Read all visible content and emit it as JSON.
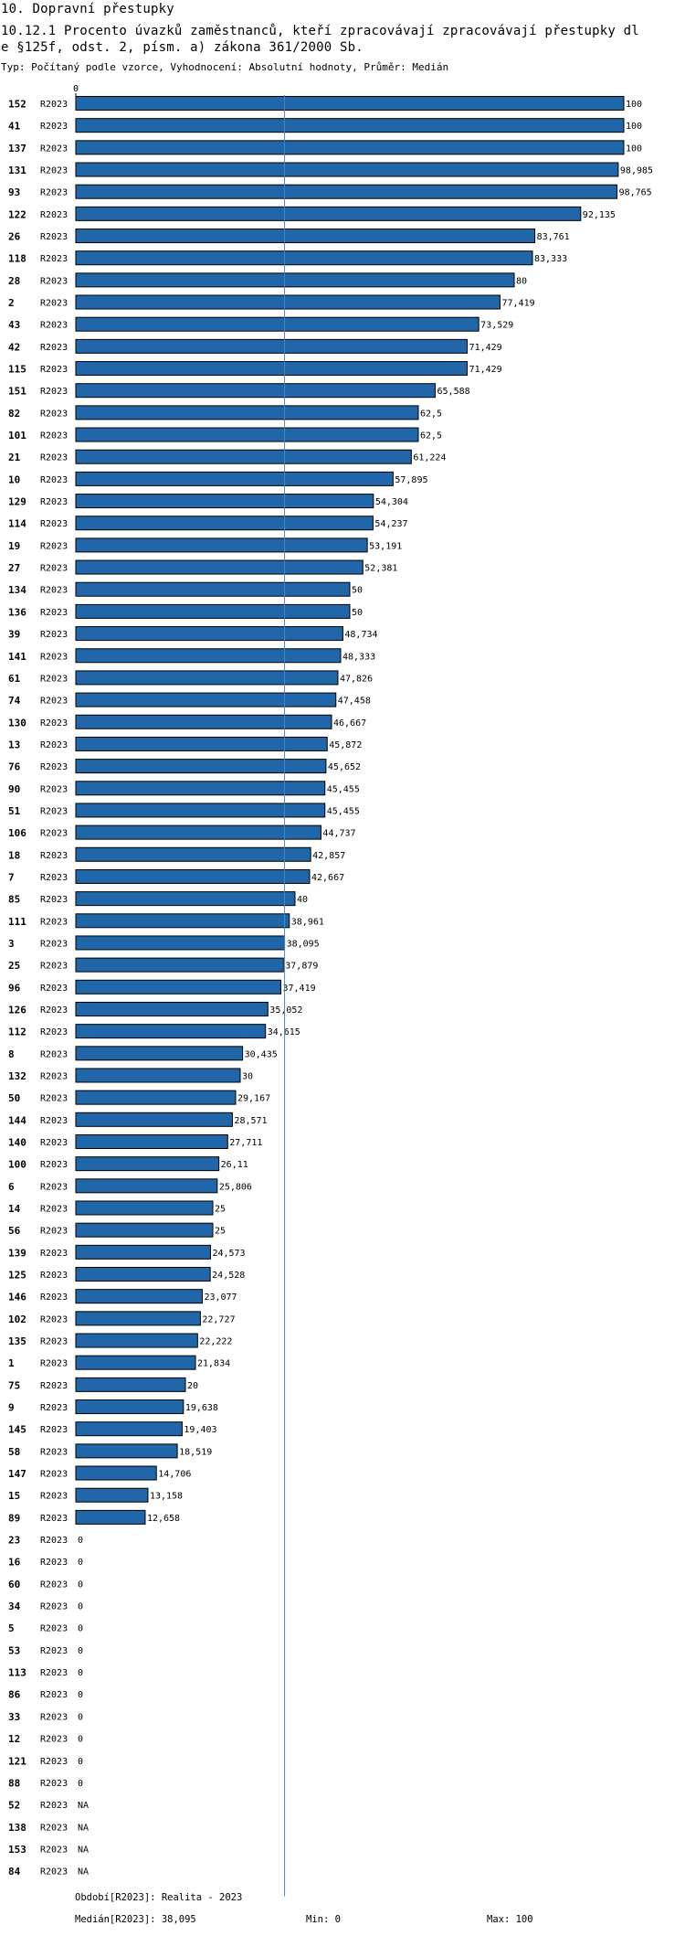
{
  "header": {
    "title_line1": "10. Dopravní přestupky",
    "title_line2": "10.12.1 Procento úvazků zaměstnanců, kteří zpracovávají zpracovávají přestupky dl",
    "title_line3": "e §125f, odst. 2, písm. a) zákona 361/2000 Sb.",
    "subtitle": "Typ: Počítaný podle vzorce, Vyhodnocení: Absolutní hodnoty, Průměr: Medián"
  },
  "footer": {
    "period": "Období[R2023]: Realita - 2023",
    "median": "Medián[R2023]: 38,095",
    "min": "Min: 0",
    "max": "Max: 100"
  },
  "colors": {
    "bar": "#2266aa",
    "median_line": "#4a86c0",
    "text": "#000000"
  },
  "chart_data": {
    "type": "bar",
    "orientation": "horizontal",
    "series_label": "R2023",
    "axis_zero_label": "0",
    "xlim": [
      0,
      100
    ],
    "median": 38.095,
    "categories": [
      "152",
      "41",
      "137",
      "131",
      "93",
      "122",
      "26",
      "118",
      "28",
      "2",
      "43",
      "42",
      "115",
      "151",
      "82",
      "101",
      "21",
      "10",
      "129",
      "114",
      "19",
      "27",
      "134",
      "136",
      "39",
      "141",
      "61",
      "74",
      "130",
      "13",
      "76",
      "90",
      "51",
      "106",
      "18",
      "7",
      "85",
      "111",
      "3",
      "25",
      "96",
      "126",
      "112",
      "8",
      "132",
      "50",
      "144",
      "140",
      "100",
      "6",
      "14",
      "56",
      "139",
      "125",
      "146",
      "102",
      "135",
      "1",
      "75",
      "9",
      "145",
      "58",
      "147",
      "15",
      "89",
      "23",
      "16",
      "60",
      "34",
      "5",
      "53",
      "113",
      "86",
      "33",
      "12",
      "121",
      "88",
      "52",
      "138",
      "153",
      "84"
    ],
    "values": [
      100,
      100,
      100,
      98.985,
      98.765,
      92.135,
      83.761,
      83.333,
      80,
      77.419,
      73.529,
      71.429,
      71.429,
      65.588,
      62.5,
      62.5,
      61.224,
      57.895,
      54.304,
      54.237,
      53.191,
      52.381,
      50,
      50,
      48.734,
      48.333,
      47.826,
      47.458,
      46.667,
      45.872,
      45.652,
      45.455,
      45.455,
      44.737,
      42.857,
      42.667,
      40,
      38.961,
      38.095,
      37.879,
      37.419,
      35.052,
      34.615,
      30.435,
      30,
      29.167,
      28.571,
      27.711,
      26.11,
      25.806,
      25,
      25,
      24.573,
      24.528,
      23.077,
      22.727,
      22.222,
      21.834,
      20,
      19.638,
      19.403,
      18.519,
      14.706,
      13.158,
      12.658,
      0,
      0,
      0,
      0,
      0,
      0,
      0,
      0,
      0,
      0,
      0,
      0,
      null,
      null,
      null,
      null
    ],
    "value_labels": [
      "100",
      "100",
      "100",
      "98,985",
      "98,765",
      "92,135",
      "83,761",
      "83,333",
      "80",
      "77,419",
      "73,529",
      "71,429",
      "71,429",
      "65,588",
      "62,5",
      "62,5",
      "61,224",
      "57,895",
      "54,304",
      "54,237",
      "53,191",
      "52,381",
      "50",
      "50",
      "48,734",
      "48,333",
      "47,826",
      "47,458",
      "46,667",
      "45,872",
      "45,652",
      "45,455",
      "45,455",
      "44,737",
      "42,857",
      "42,667",
      "40",
      "38,961",
      "38,095",
      "37,879",
      "37,419",
      "35,052",
      "34,615",
      "30,435",
      "30",
      "29,167",
      "28,571",
      "27,711",
      "26,11",
      "25,806",
      "25",
      "25",
      "24,573",
      "24,528",
      "23,077",
      "22,727",
      "22,222",
      "21,834",
      "20",
      "19,638",
      "19,403",
      "18,519",
      "14,706",
      "13,158",
      "12,658",
      "0",
      "0",
      "0",
      "0",
      "0",
      "0",
      "0",
      "0",
      "0",
      "0",
      "0",
      "0",
      "NA",
      "NA",
      "NA",
      "NA"
    ]
  }
}
